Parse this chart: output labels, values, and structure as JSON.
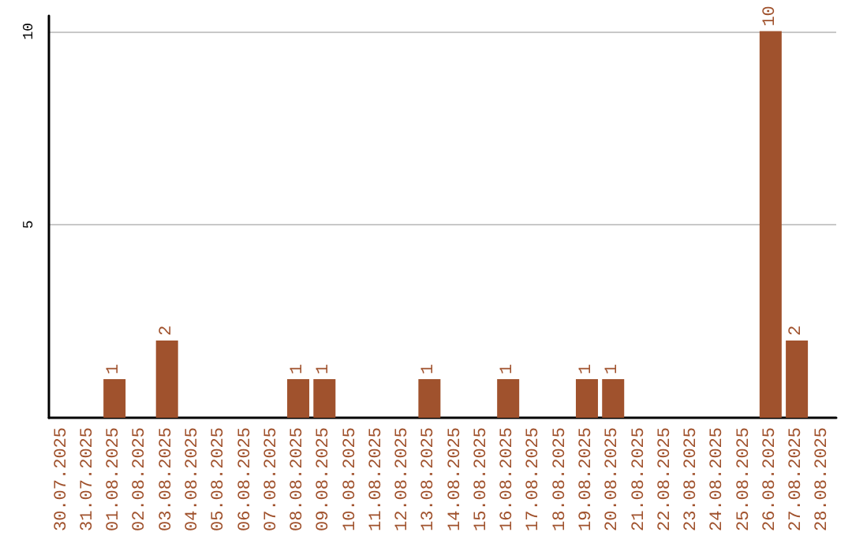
{
  "chart_data": {
    "type": "bar",
    "categories": [
      "30.07.2025",
      "31.07.2025",
      "01.08.2025",
      "02.08.2025",
      "03.08.2025",
      "04.08.2025",
      "05.08.2025",
      "06.08.2025",
      "07.08.2025",
      "08.08.2025",
      "09.08.2025",
      "10.08.2025",
      "11.08.2025",
      "12.08.2025",
      "13.08.2025",
      "14.08.2025",
      "15.08.2025",
      "16.08.2025",
      "17.08.2025",
      "18.08.2025",
      "19.08.2025",
      "20.08.2025",
      "21.08.2025",
      "22.08.2025",
      "23.08.2025",
      "24.08.2025",
      "25.08.2025",
      "26.08.2025",
      "27.08.2025",
      "28.08.2025"
    ],
    "values": [
      0,
      0,
      1,
      0,
      2,
      0,
      0,
      0,
      0,
      1,
      1,
      0,
      0,
      0,
      1,
      0,
      0,
      1,
      0,
      0,
      1,
      1,
      0,
      0,
      0,
      0,
      0,
      10,
      2,
      0
    ],
    "value_labels": [
      null,
      null,
      "1",
      null,
      "2",
      null,
      null,
      null,
      null,
      "1",
      "1",
      null,
      null,
      null,
      "1",
      null,
      null,
      "1",
      null,
      null,
      "1",
      "1",
      null,
      null,
      null,
      null,
      null,
      "10",
      "2",
      null
    ],
    "color": "#a0522d",
    "ylim": [
      0,
      10.4
    ],
    "yticks": [
      5,
      10
    ],
    "grid": "y"
  }
}
